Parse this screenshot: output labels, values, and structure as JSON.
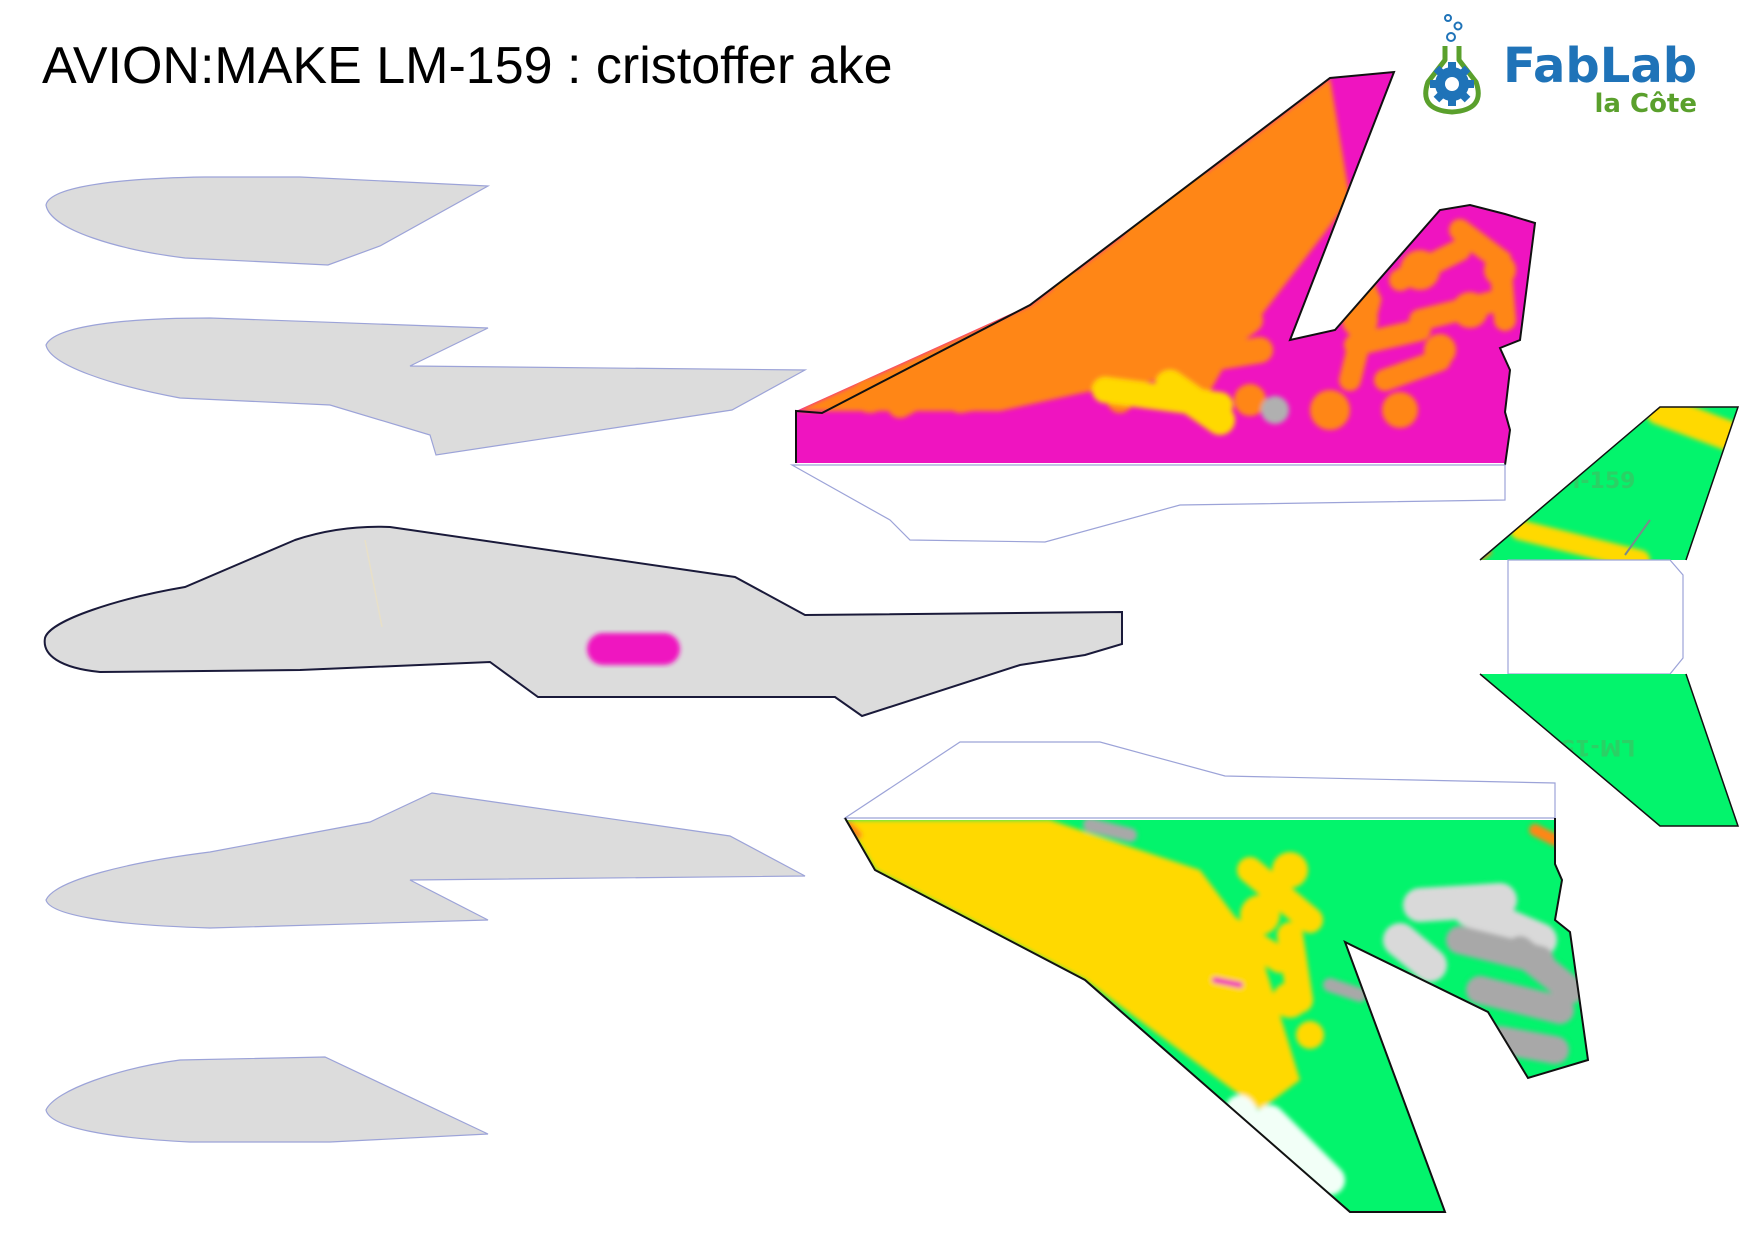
{
  "title": "AVION:MAKE LM-159 : cristoffer ake",
  "logo": {
    "name": "FabLab",
    "subtitle": "la Côte",
    "blue": "#1f73b8",
    "green": "#5aa02c"
  },
  "tail_label": "LM-159",
  "colors": {
    "grey_part": "#dcdcdc",
    "outline_blue": "#9ca3d8",
    "orange": "#ff8618",
    "magenta": "#ef14c0",
    "yellow": "#ffd900",
    "green": "#03f46c",
    "grey_paint": "#a8a8a8",
    "light_grey_paint": "#d9d9d9"
  }
}
